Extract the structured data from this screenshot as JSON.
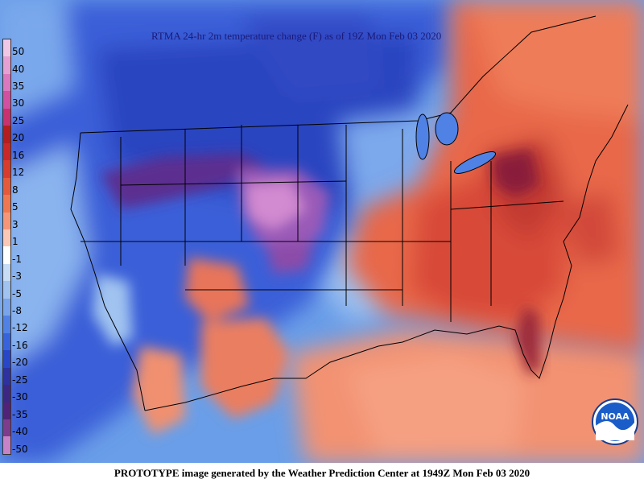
{
  "title": "RTMA 24-hr 2m temperature change (F) as of 19Z Mon Feb 03 2020",
  "footer": "PROTOTYPE image generated by the Weather Prediction Center at 1949Z Mon Feb 03 2020",
  "logo_text": "NOAA",
  "legend": {
    "labels": [
      "50",
      "40",
      "35",
      "30",
      "25",
      "20",
      "16",
      "12",
      "8",
      "5",
      "3",
      "1",
      "-1",
      "-3",
      "-5",
      "-8",
      "-12",
      "-16",
      "-20",
      "-25",
      "-30",
      "-35",
      "-40",
      "-50"
    ],
    "colors": [
      "#f0c8e6",
      "#e6a0d2",
      "#dc78be",
      "#d250a0",
      "#c8326e",
      "#b41e1e",
      "#c82828",
      "#d73c2d",
      "#e65a3c",
      "#f07850",
      "#f59678",
      "#fac8b4",
      "#ffffff",
      "#c8dcf5",
      "#a0c3f0",
      "#78a5eb",
      "#5082e6",
      "#3764dc",
      "#2846c8",
      "#2d32a0",
      "#3c2882",
      "#502378",
      "#7d3c8c",
      "#c882c8"
    ]
  },
  "colors": {
    "cold_deep": "#2846c8",
    "cold_mid": "#5082e6",
    "cold_light": "#a0c3f0",
    "extreme_cold": "#7d3c8c",
    "extreme_cold_light": "#c882c8",
    "warm_light": "#f59678",
    "warm_mid": "#e65a3c",
    "warm_deep": "#c82828",
    "warm_extreme": "#8c1e3c"
  }
}
